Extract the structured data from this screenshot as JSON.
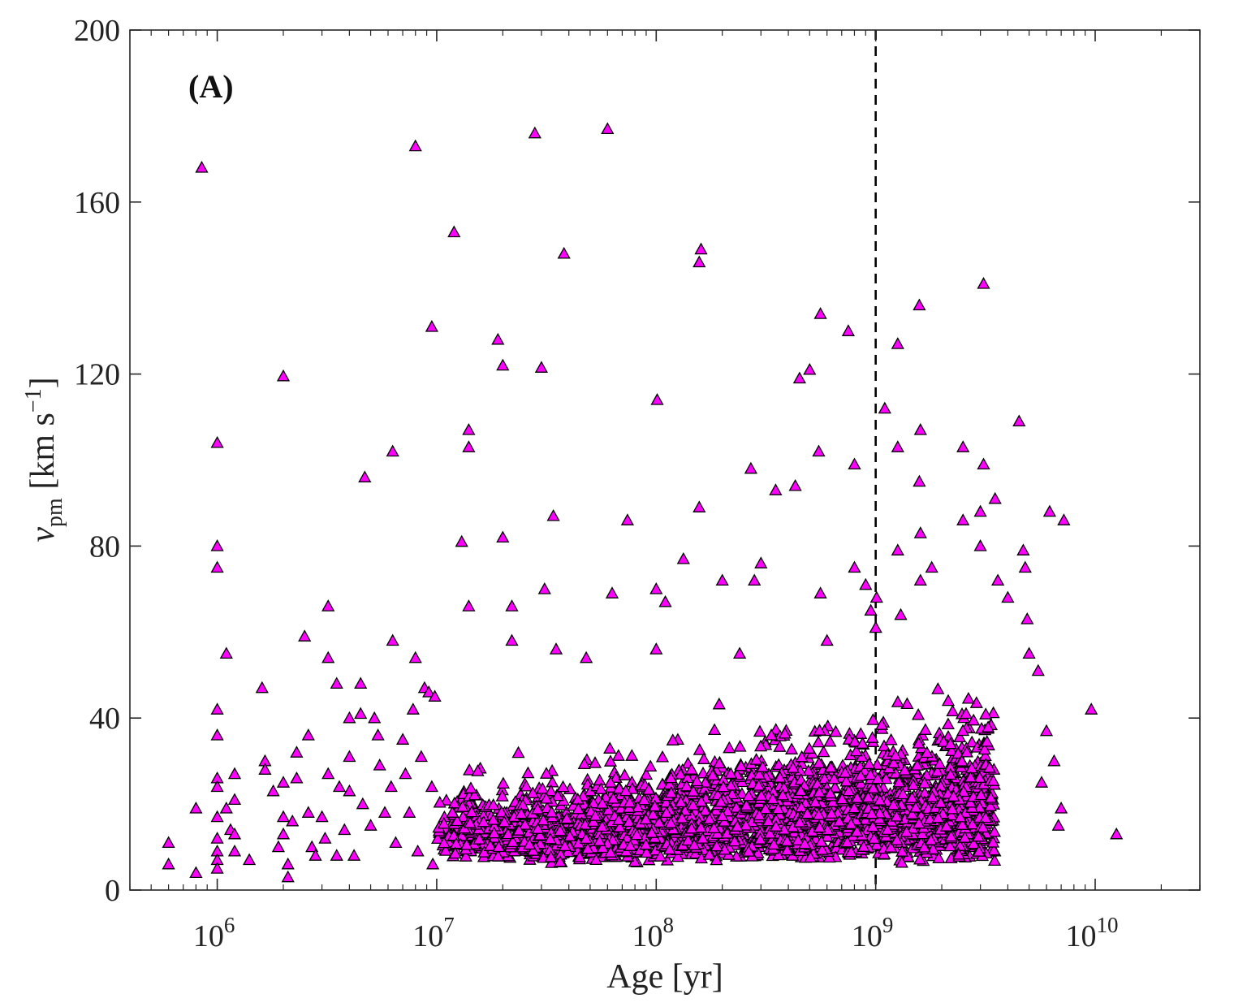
{
  "chart_data": {
    "type": "scatter",
    "panel_label": "(A)",
    "xlabel": "Age [yr]",
    "ylabel": "v",
    "ylabel_sub": "pm",
    "ylabel_unit": " [km s",
    "ylabel_unit_sup": "−1",
    "ylabel_close": "]",
    "x_scale": "log",
    "xlim": [
      400000,
      30000000000
    ],
    "ylim": [
      0,
      200
    ],
    "x_ticks": [
      {
        "value": 1000000,
        "base": "10",
        "exp": "6"
      },
      {
        "value": 10000000,
        "base": "10",
        "exp": "7"
      },
      {
        "value": 100000000,
        "base": "10",
        "exp": "8"
      },
      {
        "value": 1000000000,
        "base": "10",
        "exp": "9"
      },
      {
        "value": 10000000000,
        "base": "10",
        "exp": "10"
      }
    ],
    "y_ticks": [
      "0",
      "40",
      "80",
      "120",
      "160",
      "200"
    ],
    "grid": false,
    "reference_line": {
      "x": 1000000000,
      "style": "dashed",
      "color": "#000000"
    },
    "marker": {
      "shape": "triangle",
      "fill": "#ff00ff",
      "edge": "#000000"
    },
    "dense_region": {
      "x_range": [
        10000000,
        3500000000
      ],
      "y_range": [
        2,
        45
      ],
      "approx_count": 3000
    },
    "points": [
      [
        850000,
        168
      ],
      [
        2000000,
        119.5
      ],
      [
        1000000,
        104
      ],
      [
        1000000,
        80
      ],
      [
        1000000,
        75
      ],
      [
        1100000,
        55
      ],
      [
        1000000,
        42
      ],
      [
        3200000,
        66
      ],
      [
        4700000,
        96
      ],
      [
        6300000,
        102
      ],
      [
        6300000,
        58
      ],
      [
        8000000,
        173
      ],
      [
        9500000,
        131
      ],
      [
        8000000,
        54
      ],
      [
        12000000,
        153
      ],
      [
        13000000,
        81
      ],
      [
        14000000,
        103
      ],
      [
        14000000,
        107
      ],
      [
        14000000,
        66
      ],
      [
        19000000,
        128
      ],
      [
        20000000,
        122
      ],
      [
        20000000,
        82
      ],
      [
        22000000,
        66
      ],
      [
        22000000,
        58
      ],
      [
        28000000,
        176
      ],
      [
        30000000,
        121.5
      ],
      [
        31000000,
        70
      ],
      [
        34000000,
        87
      ],
      [
        38000000,
        148
      ],
      [
        35000000,
        56
      ],
      [
        48000000,
        54
      ],
      [
        60000000,
        177
      ],
      [
        63000000,
        69
      ],
      [
        74000000,
        86
      ],
      [
        101000000,
        114
      ],
      [
        100000000,
        70
      ],
      [
        100000000,
        56
      ],
      [
        110000000,
        67
      ],
      [
        133000000,
        77
      ],
      [
        160000000,
        149
      ],
      [
        157000000,
        146
      ],
      [
        157000000,
        89
      ],
      [
        200000000,
        72
      ],
      [
        240000000,
        55
      ],
      [
        270000000,
        98
      ],
      [
        280000000,
        72
      ],
      [
        300000000,
        76
      ],
      [
        350000000,
        93
      ],
      [
        430000000,
        94
      ],
      [
        450000000,
        119
      ],
      [
        500000000,
        121
      ],
      [
        550000000,
        102
      ],
      [
        560000000,
        134
      ],
      [
        560000000,
        69
      ],
      [
        600000000,
        58
      ],
      [
        750000000,
        130
      ],
      [
        800000000,
        99
      ],
      [
        800000000,
        75
      ],
      [
        900000000,
        71
      ],
      [
        950000000,
        65
      ],
      [
        1010000000,
        68
      ],
      [
        1000000000,
        61
      ],
      [
        1100000000,
        112
      ],
      [
        1260000000,
        127
      ],
      [
        1260000000,
        103
      ],
      [
        1260000000,
        79
      ],
      [
        1300000000,
        64
      ],
      [
        1580000000,
        136
      ],
      [
        1600000000,
        107
      ],
      [
        1580000000,
        95
      ],
      [
        1600000000,
        83
      ],
      [
        1600000000,
        72
      ],
      [
        1800000000,
        75
      ],
      [
        2500000000,
        103
      ],
      [
        2500000000,
        86
      ],
      [
        3100000000,
        141
      ],
      [
        3100000000,
        99
      ],
      [
        3000000000,
        88
      ],
      [
        3500000000,
        91
      ],
      [
        3000000000,
        80
      ],
      [
        3600000000,
        72
      ],
      [
        4000000000,
        68
      ],
      [
        4500000000,
        109
      ],
      [
        4700000000,
        79
      ],
      [
        4800000000,
        75
      ],
      [
        4900000000,
        63
      ],
      [
        5000000000,
        55
      ],
      [
        5500000000,
        51
      ],
      [
        6200000000,
        88
      ],
      [
        7200000000,
        86
      ],
      [
        9600000000,
        42
      ],
      [
        12500000000,
        13
      ],
      [
        6500000000,
        30
      ],
      [
        6800000000,
        15
      ],
      [
        7000000000,
        19
      ],
      [
        6000000000,
        37
      ],
      [
        5700000000,
        25
      ],
      [
        600000,
        11
      ],
      [
        600000,
        6
      ],
      [
        800000,
        19
      ],
      [
        800000,
        4
      ],
      [
        1000000,
        36
      ],
      [
        1000000,
        26
      ],
      [
        1000000,
        24
      ],
      [
        1000000,
        17
      ],
      [
        1000000,
        12
      ],
      [
        1000000,
        9
      ],
      [
        1000000,
        7
      ],
      [
        1000000,
        5
      ],
      [
        1100000,
        19
      ],
      [
        1150000,
        14
      ],
      [
        1200000,
        27
      ],
      [
        1200000,
        21
      ],
      [
        1200000,
        13
      ],
      [
        1200000,
        9
      ],
      [
        1400000,
        7
      ],
      [
        1600000,
        47
      ],
      [
        1650000,
        30
      ],
      [
        1650000,
        28
      ],
      [
        1800000,
        23
      ],
      [
        1900000,
        10
      ],
      [
        2000000,
        25
      ],
      [
        2000000,
        17
      ],
      [
        2000000,
        13
      ],
      [
        2100000,
        6
      ],
      [
        2100000,
        3
      ],
      [
        2200000,
        16
      ],
      [
        2300000,
        32
      ],
      [
        2300000,
        26
      ],
      [
        2500000,
        59
      ],
      [
        2600000,
        36
      ],
      [
        2600000,
        18
      ],
      [
        2700000,
        10
      ],
      [
        2800000,
        8
      ],
      [
        3000000,
        17
      ],
      [
        3100000,
        12
      ],
      [
        3200000,
        54
      ],
      [
        3200000,
        27
      ],
      [
        3500000,
        48
      ],
      [
        3500000,
        8
      ],
      [
        3600000,
        24
      ],
      [
        3800000,
        14
      ],
      [
        4000000,
        40
      ],
      [
        4000000,
        31
      ],
      [
        4000000,
        23
      ],
      [
        4200000,
        8
      ],
      [
        4500000,
        48
      ],
      [
        4500000,
        41
      ],
      [
        4600000,
        20
      ],
      [
        5000000,
        15
      ],
      [
        5200000,
        40
      ],
      [
        5400000,
        36
      ],
      [
        5500000,
        29
      ],
      [
        5800000,
        18
      ],
      [
        6200000,
        24
      ],
      [
        6500000,
        11
      ],
      [
        7000000,
        35
      ],
      [
        7200000,
        27
      ],
      [
        7500000,
        18
      ],
      [
        7800000,
        42
      ],
      [
        8200000,
        9
      ],
      [
        8500000,
        31
      ],
      [
        8800000,
        47
      ],
      [
        9200000,
        46
      ],
      [
        9500000,
        24
      ],
      [
        9800000,
        45
      ],
      [
        9600000,
        6
      ]
    ]
  }
}
